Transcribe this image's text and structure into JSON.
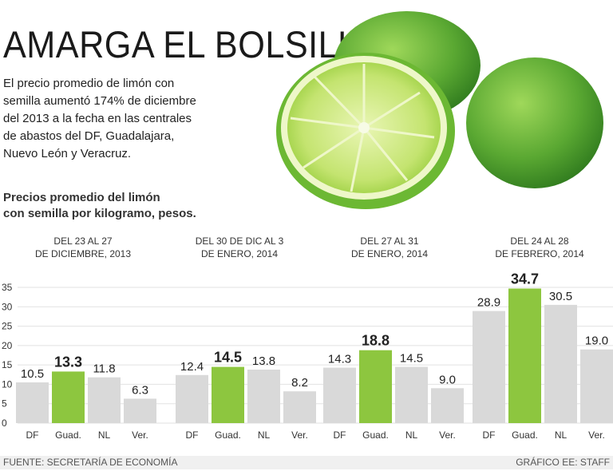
{
  "header": {
    "title": "AMARGA EL BOLSILLO",
    "lead": [
      "El precio promedio de limón con",
      "semilla aumentó 174% de diciembre",
      "del 2013 a la fecha en las centrales",
      "de abastos del DF, Guadalajara,",
      "Nuevo León y Veracruz."
    ],
    "subtitle": [
      "Precios promedio del limón",
      "con semilla por kilogramo, pesos."
    ]
  },
  "colors": {
    "accent": "#8dc63f",
    "bar": "#d9d9d9",
    "grid": "#e2e2e2",
    "lime_dark": "#5aa832",
    "lime_light": "#c4e470"
  },
  "chart_data": {
    "type": "bar",
    "title": "Precios promedio del limón con semilla por kilogramo, pesos.",
    "ylim": [
      0,
      35
    ],
    "yticks": [
      0,
      5,
      10,
      15,
      20,
      25,
      30,
      35
    ],
    "grid": true,
    "highlight_category": "Guad.",
    "categories": [
      "DF",
      "Guad.",
      "NL",
      "Ver."
    ],
    "groups": [
      {
        "label": "DEL 23 AL 27\nDE DICIEMBRE, 2013",
        "values": [
          10.5,
          13.3,
          11.8,
          6.3
        ]
      },
      {
        "label": "DEL 30 DE DIC AL 3\nDE ENERO, 2014",
        "values": [
          12.4,
          14.5,
          13.8,
          8.2
        ]
      },
      {
        "label": "DEL 27 AL 31\nDE ENERO, 2014",
        "values": [
          14.3,
          18.8,
          14.5,
          9.0
        ]
      },
      {
        "label": "DEL 24 AL 28\nDE FEBRERO, 2014",
        "values": [
          28.9,
          34.7,
          30.5,
          19.0
        ]
      }
    ]
  },
  "footer": {
    "source": "FUENTE: SECRETARÍA DE ECONOMÍA",
    "credit": "GRÁFICO EE: STAFF"
  }
}
